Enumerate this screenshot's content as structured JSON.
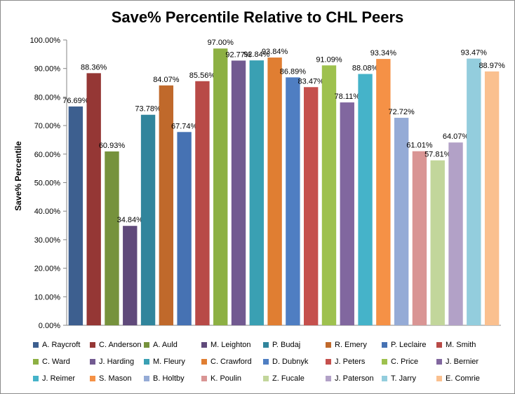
{
  "chart_data": {
    "type": "bar",
    "title": "Save% Percentile Relative to CHL Peers",
    "xlabel": "",
    "ylabel": "Save% Percentile",
    "ylim": [
      0,
      100
    ],
    "yticks": [
      0,
      10,
      20,
      30,
      40,
      50,
      60,
      70,
      80,
      90,
      100
    ],
    "ytick_labels": [
      "0.00%",
      "10.00%",
      "20.00%",
      "30.00%",
      "40.00%",
      "50.00%",
      "60.00%",
      "70.00%",
      "80.00%",
      "90.00%",
      "100.00%"
    ],
    "grid": false,
    "legend_position": "bottom",
    "series": [
      {
        "name": "A. Raycroft",
        "value": 76.69,
        "label": "76.69%",
        "color": "#3d5f8f"
      },
      {
        "name": "C. Anderson",
        "value": 88.36,
        "label": "88.36%",
        "color": "#953735"
      },
      {
        "name": "A. Auld",
        "value": 60.93,
        "label": "60.93%",
        "color": "#76923c"
      },
      {
        "name": "M. Leighton",
        "value": 34.84,
        "label": "34.84%",
        "color": "#604a7b"
      },
      {
        "name": "P. Budaj",
        "value": 73.78,
        "label": "73.78%",
        "color": "#31859c"
      },
      {
        "name": "R. Emery",
        "value": 84.07,
        "label": "84.07%",
        "color": "#c0692b"
      },
      {
        "name": "P. Leclaire",
        "value": 67.74,
        "label": "67.74%",
        "color": "#4672b3"
      },
      {
        "name": "M. Smith",
        "value": 85.56,
        "label": "85.56%",
        "color": "#b84a47"
      },
      {
        "name": "C. Ward",
        "value": 97.0,
        "label": "97.00%",
        "color": "#8db043"
      },
      {
        "name": "J. Harding",
        "value": 92.77,
        "label": "92.77%",
        "color": "#725a91"
      },
      {
        "name": "M. Fleury",
        "value": 92.84,
        "label": "92.84%",
        "color": "#3aa0b3"
      },
      {
        "name": "C. Crawford",
        "value": 93.84,
        "label": "93.84%",
        "color": "#e07e32"
      },
      {
        "name": "D. Dubnyk",
        "value": 86.89,
        "label": "86.89%",
        "color": "#4f7ec2"
      },
      {
        "name": "J. Peters",
        "value": 83.47,
        "label": "83.47%",
        "color": "#c5504d"
      },
      {
        "name": "C. Price",
        "value": 91.09,
        "label": "91.09%",
        "color": "#9ec14e"
      },
      {
        "name": "J. Bernier",
        "value": 78.11,
        "label": "78.11%",
        "color": "#81679f"
      },
      {
        "name": "J. Reimer",
        "value": 88.08,
        "label": "88.08%",
        "color": "#45b3c9"
      },
      {
        "name": "S. Mason",
        "value": 93.34,
        "label": "93.34%",
        "color": "#f59146"
      },
      {
        "name": "B. Holtby",
        "value": 72.72,
        "label": "72.72%",
        "color": "#95abd6"
      },
      {
        "name": "K. Poulin",
        "value": 61.01,
        "label": "61.01%",
        "color": "#d99594"
      },
      {
        "name": "Z. Fucale",
        "value": 57.81,
        "label": "57.81%",
        "color": "#c2d69b"
      },
      {
        "name": "J. Paterson",
        "value": 64.07,
        "label": "64.07%",
        "color": "#b2a1c7"
      },
      {
        "name": "T. Jarry",
        "value": 93.47,
        "label": "93.47%",
        "color": "#93cddd"
      },
      {
        "name": "E. Comrie",
        "value": 88.97,
        "label": "88.97%",
        "color": "#fac08f"
      }
    ]
  }
}
